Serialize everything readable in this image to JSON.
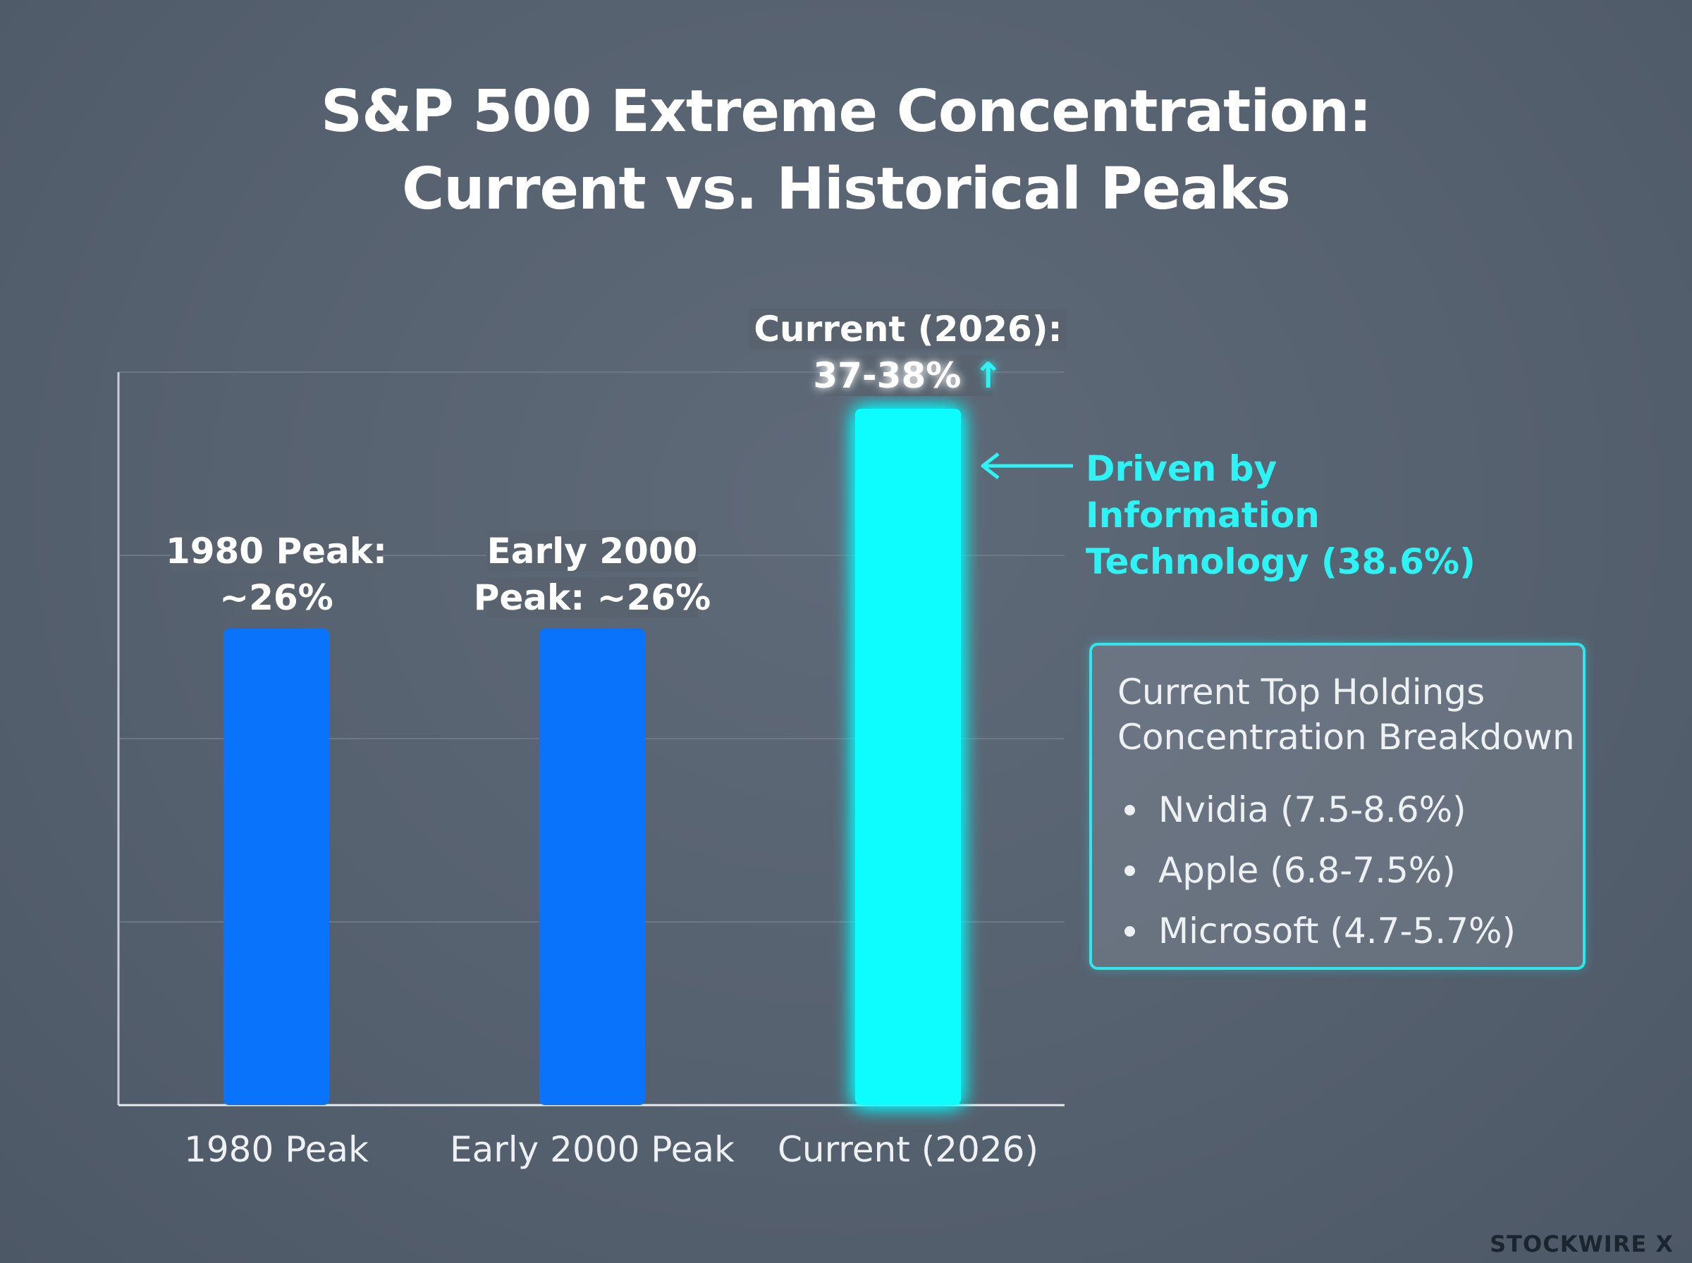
{
  "title": {
    "line1": "S&P 500 Extreme Concentration:",
    "line2": "Current vs. Historical Peaks"
  },
  "chart_data": {
    "type": "bar",
    "categories": [
      "1980 Peak",
      "Early 2000 Peak",
      "Current (2026)"
    ],
    "values": [
      26,
      26,
      38
    ],
    "unit": "%",
    "grid": true,
    "y_axis_labels_shown": false,
    "bar_colors": [
      "#0a73fb",
      "#0a73fb",
      "#0afcfd"
    ],
    "data_labels": [
      {
        "line1": "1980 Peak:",
        "line2": "~26%"
      },
      {
        "line1": "Early 2000",
        "line2": "Peak: ~26%"
      },
      {
        "line1": "Current (2026):",
        "line2": "37-38% ↑"
      }
    ],
    "annotation": "Driven by Information Technology (38.6%)"
  },
  "callout": {
    "line1": "Driven by Information",
    "line2": "Technology (38.6%)"
  },
  "holdings_box": {
    "title_line1": "Current Top Holdings",
    "title_line2": "Concentration Breakdown",
    "items": [
      "Nvidia (7.5-8.6%)",
      "Apple (6.8-7.5%)",
      "Microsoft (4.7-5.7%)"
    ]
  },
  "brand": "STOCKWIRE X",
  "colors": {
    "background": "#56616f",
    "historical_bar": "#0a73fb",
    "current_bar": "#0afcfd",
    "accent": "#2ef3f5",
    "grid": "#6d7886"
  }
}
